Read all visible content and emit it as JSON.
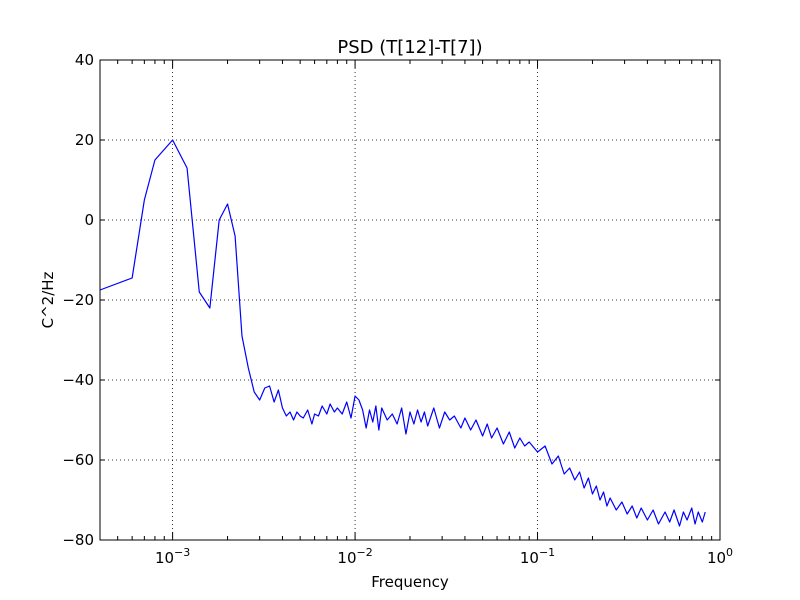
{
  "chart_data": {
    "type": "line",
    "title": "PSD (T[12]-T[7])",
    "xlabel": "Frequency",
    "ylabel": "C^2/Hz",
    "xscale": "log",
    "xlim": [
      0.0004,
      1.0
    ],
    "ylim": [
      -80,
      40
    ],
    "grid": true,
    "y_ticks": [
      40,
      20,
      0,
      -20,
      -40,
      -60,
      -80
    ],
    "y_tick_labels": [
      "40",
      "20",
      "0",
      "−20",
      "−40",
      "−60",
      "−80"
    ],
    "x_ticks": [
      0.001,
      0.01,
      0.1,
      1
    ],
    "x_tick_labels": [
      {
        "base": "10",
        "exp": "−3"
      },
      {
        "base": "10",
        "exp": "−2"
      },
      {
        "base": "10",
        "exp": "−1"
      },
      {
        "base": "10",
        "exp": "0"
      }
    ],
    "series": [
      {
        "color": "#0000ff",
        "x": [
          0.0004,
          0.0006,
          0.0007,
          0.0008,
          0.001,
          0.0012,
          0.0014,
          0.0016,
          0.0018,
          0.002,
          0.0022,
          0.0024,
          0.0026,
          0.0028,
          0.003,
          0.0032,
          0.0034,
          0.0036,
          0.0038,
          0.004,
          0.0042,
          0.0044,
          0.0046,
          0.0048,
          0.005,
          0.0052,
          0.0055,
          0.0058,
          0.006,
          0.0063,
          0.0066,
          0.007,
          0.0073,
          0.0077,
          0.008,
          0.0085,
          0.009,
          0.0095,
          0.01,
          0.0105,
          0.011,
          0.0115,
          0.012,
          0.0125,
          0.013,
          0.0135,
          0.014,
          0.015,
          0.016,
          0.017,
          0.018,
          0.019,
          0.02,
          0.021,
          0.022,
          0.023,
          0.024,
          0.025,
          0.027,
          0.029,
          0.031,
          0.033,
          0.035,
          0.038,
          0.04,
          0.043,
          0.046,
          0.05,
          0.053,
          0.056,
          0.06,
          0.065,
          0.07,
          0.075,
          0.08,
          0.085,
          0.09,
          0.1,
          0.11,
          0.12,
          0.13,
          0.14,
          0.15,
          0.16,
          0.17,
          0.18,
          0.19,
          0.2,
          0.21,
          0.22,
          0.23,
          0.24,
          0.25,
          0.27,
          0.29,
          0.31,
          0.33,
          0.35,
          0.37,
          0.4,
          0.43,
          0.46,
          0.5,
          0.53,
          0.56,
          0.6,
          0.63,
          0.66,
          0.7,
          0.73,
          0.76,
          0.8,
          0.83
        ],
        "y": [
          -17.5,
          -14.5,
          5,
          15,
          20,
          13,
          -18,
          -22,
          0,
          4,
          -4,
          -29,
          -37,
          -43,
          -45,
          -42,
          -41.5,
          -45.5,
          -42.5,
          -47,
          -49,
          -48,
          -50,
          -48,
          -49,
          -49.5,
          -47.5,
          -51,
          -48.5,
          -49,
          -46.5,
          -48.5,
          -46,
          -48,
          -47,
          -48.5,
          -45.5,
          -49.5,
          -44,
          -45,
          -47.5,
          -52,
          -47.5,
          -50.5,
          -46.5,
          -52.5,
          -47,
          -50,
          -48.5,
          -51,
          -47,
          -53.5,
          -48,
          -51,
          -47.5,
          -50.5,
          -48,
          -51.5,
          -47,
          -52,
          -48,
          -50,
          -49,
          -52,
          -49.5,
          -52.5,
          -50,
          -54,
          -51,
          -54.5,
          -52,
          -56,
          -53,
          -57,
          -54.5,
          -56.5,
          -55.5,
          -58,
          -56.5,
          -61,
          -59,
          -63.5,
          -62,
          -65,
          -63,
          -67,
          -64.5,
          -68.5,
          -66.5,
          -70,
          -68,
          -71.5,
          -69.5,
          -72.5,
          -70.5,
          -73.5,
          -71.5,
          -74.5,
          -72,
          -75,
          -72.5,
          -76,
          -73,
          -75.5,
          -72.5,
          -76.5,
          -73,
          -75,
          -72,
          -76,
          -73,
          -75.5,
          -73
        ]
      }
    ]
  }
}
